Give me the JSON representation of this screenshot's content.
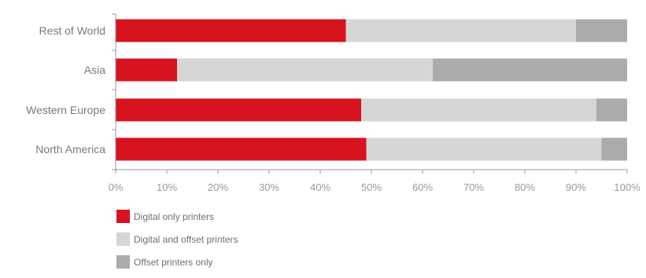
{
  "chart_data": {
    "type": "bar",
    "orientation": "horizontal",
    "stacked": true,
    "categories": [
      "Rest of World",
      "Asia",
      "Western Europe",
      "North America"
    ],
    "series": [
      {
        "name": "Digital only printers",
        "values": [
          45,
          12,
          48,
          49
        ],
        "color": "#d7131f"
      },
      {
        "name": "Digital and offset printers",
        "values": [
          45,
          50,
          46,
          46
        ],
        "color": "#d6d6d6"
      },
      {
        "name": "Offset printers only",
        "values": [
          10,
          38,
          6,
          5
        ],
        "color": "#ababab"
      }
    ],
    "xlim": [
      0,
      100
    ],
    "xticks": [
      "0%",
      "10%",
      "20%",
      "30%",
      "40%",
      "50%",
      "60%",
      "70%",
      "80%",
      "90%",
      "100%"
    ],
    "grid": false,
    "legend_position": "bottom-left"
  }
}
